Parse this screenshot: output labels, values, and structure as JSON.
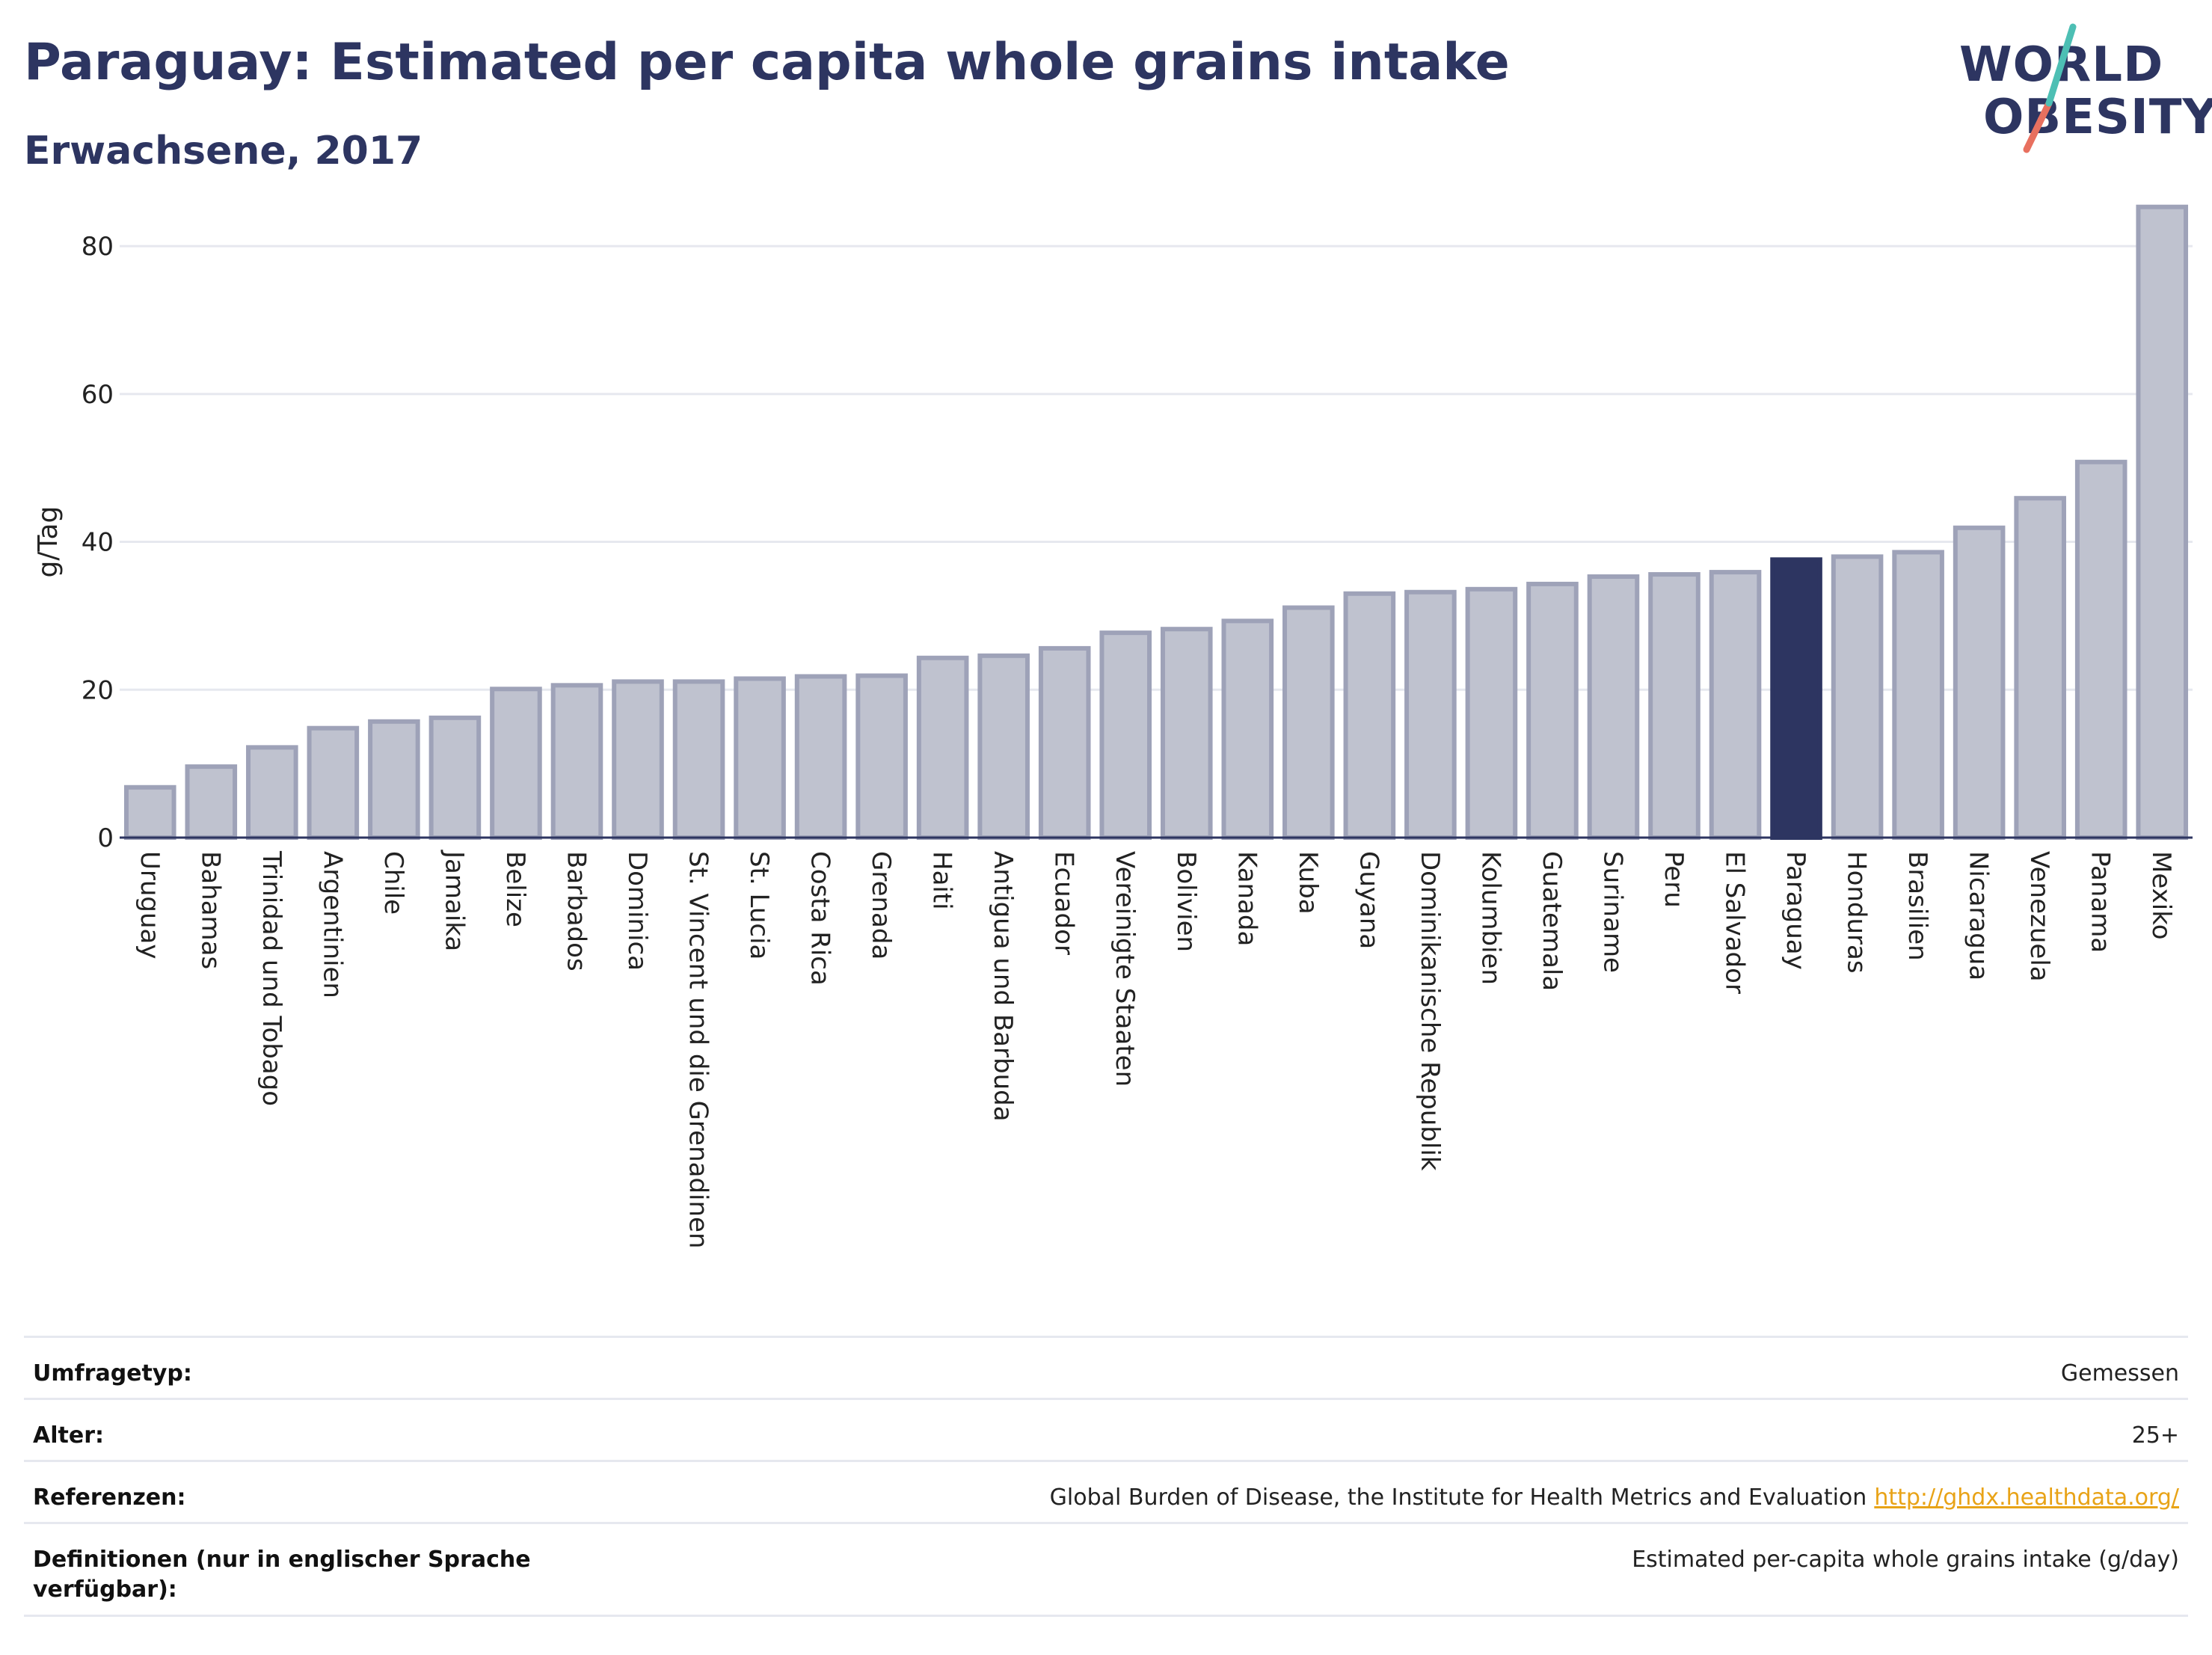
{
  "header": {
    "title": "Paraguay: Estimated per capita whole grains intake",
    "subtitle": "Erwachsene, 2017"
  },
  "logo": {
    "line1": "WORLD",
    "line2": "OBESITY"
  },
  "chart_data": {
    "type": "bar",
    "title": "Paraguay: Estimated per capita whole grains intake",
    "subtitle": "Erwachsene, 2017",
    "ylabel": "g/Tag",
    "xlabel": "",
    "ylim": [
      0,
      88
    ],
    "yticks": [
      0,
      20,
      40,
      60,
      80
    ],
    "grid": true,
    "highlight": "Paraguay",
    "colors": {
      "bar": "#bfc2cf",
      "bar_border": "#9ea2b8",
      "highlight": "#2d3561",
      "grid": "#e6e8ef",
      "axis": "#2d3561"
    },
    "categories": [
      "Uruguay",
      "Bahamas",
      "Trinidad und Tobago",
      "Argentinien",
      "Chile",
      "Jamaika",
      "Belize",
      "Barbados",
      "Dominica",
      "St. Vincent und die Grenadinen",
      "St. Lucia",
      "Costa Rica",
      "Grenada",
      "Haiti",
      "Antigua und Barbuda",
      "Ecuador",
      "Vereinigte Staaten",
      "Bolivien",
      "Kanada",
      "Kuba",
      "Guyana",
      "Dominikanische Republik",
      "Kolumbien",
      "Guatemala",
      "Suriname",
      "Peru",
      "El Salvador",
      "Paraguay",
      "Honduras",
      "Brasilien",
      "Nicaragua",
      "Venezuela",
      "Panama",
      "Mexiko"
    ],
    "values": [
      6.8,
      9.6,
      12.2,
      14.8,
      15.7,
      16.2,
      20.1,
      20.6,
      21.1,
      21.1,
      21.5,
      21.8,
      21.9,
      24.3,
      24.6,
      25.6,
      27.7,
      28.2,
      29.3,
      31.1,
      33.0,
      33.2,
      33.6,
      34.3,
      35.3,
      35.6,
      35.9,
      37.6,
      38.0,
      38.6,
      41.9,
      45.9,
      50.8,
      85.3
    ]
  },
  "meta": [
    {
      "key": "Umfragetyp:",
      "value": "Gemessen"
    },
    {
      "key": "Alter:",
      "value": "25+"
    },
    {
      "key": "Referenzen:",
      "value": "Global Burden of Disease, the Institute for Health Metrics and Evaluation",
      "link": "http://ghdx.healthdata.org/"
    },
    {
      "key": "Definitionen (nur in englischer Sprache verfügbar):",
      "value": "Estimated per-capita whole grains intake (g/day)"
    }
  ]
}
